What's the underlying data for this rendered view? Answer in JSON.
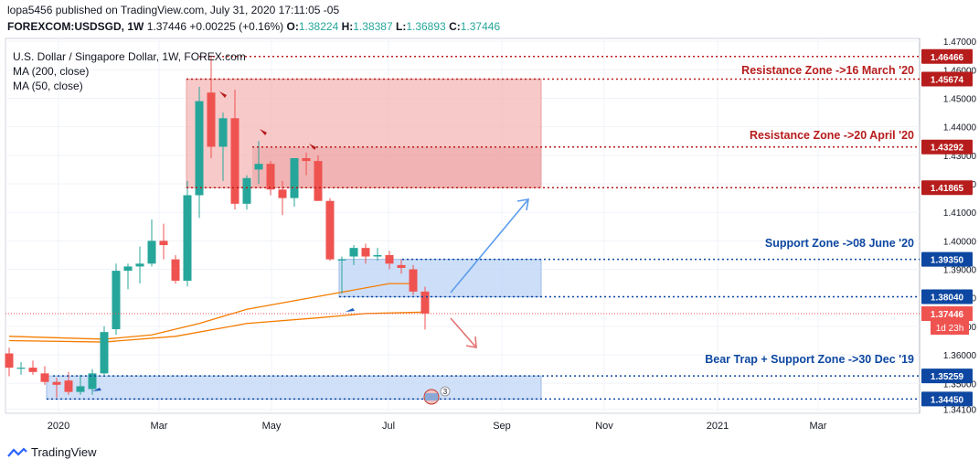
{
  "header": {
    "publisher_line": "lopa5456 published on TradingView.com, July 31, 2020 17:11:05 -05",
    "symbol": "FOREXCOM:USDSGD, 1W",
    "last": "1.37446",
    "change": "+0.00225 (+0.16%)",
    "o_label": "O:",
    "o_value": "1.38224",
    "h_label": "H:",
    "h_value": "1.38387",
    "l_label": "L:",
    "l_value": "1.36893",
    "c_label": "C:",
    "c_value": "1.37446"
  },
  "legend": {
    "title": "U.S. Dollar / Singapore Dollar, 1W, FOREX.com",
    "ma200": "MA (200, close)",
    "ma50": "MA (50, close)"
  },
  "footer": {
    "brand": "TradingView"
  },
  "colors": {
    "up": "#26a69a",
    "down": "#ef5350",
    "ma": "#f57c00",
    "resistance": "#b71c1c",
    "support": "#0d47a1",
    "resistance_fill": "#f4b7b7",
    "support_fill": "#bcd3f5",
    "arrow_up": "#5c9ded",
    "arrow_down": "#e57373"
  },
  "chart_data": {
    "type": "candlestick",
    "title": "U.S. Dollar / Singapore Dollar, 1W, FOREX.com",
    "ylim": [
      1.3395,
      1.471
    ],
    "x_ticks": [
      "2020",
      "Mar",
      "May",
      "Jul",
      "Sep",
      "Nov",
      "2021",
      "Mar"
    ],
    "y_ticks": [
      "1.47000",
      "1.46000",
      "1.45000",
      "1.44000",
      "1.43000",
      "1.42000",
      "1.41000",
      "1.40000",
      "1.39000",
      "1.38000",
      "1.37000",
      "1.36000",
      "1.35000",
      "1.34100"
    ],
    "candles": [
      {
        "o": 1.3605,
        "h": 1.3625,
        "l": 1.3525,
        "c": 1.3555
      },
      {
        "o": 1.3555,
        "h": 1.3575,
        "l": 1.353,
        "c": 1.3555
      },
      {
        "o": 1.3555,
        "h": 1.358,
        "l": 1.353,
        "c": 1.354
      },
      {
        "o": 1.3535,
        "h": 1.356,
        "l": 1.3495,
        "c": 1.3505
      },
      {
        "o": 1.3505,
        "h": 1.352,
        "l": 1.345,
        "c": 1.3495
      },
      {
        "o": 1.351,
        "h": 1.354,
        "l": 1.346,
        "c": 1.347
      },
      {
        "o": 1.347,
        "h": 1.353,
        "l": 1.346,
        "c": 1.349
      },
      {
        "o": 1.348,
        "h": 1.355,
        "l": 1.346,
        "c": 1.3535
      },
      {
        "o": 1.3535,
        "h": 1.37,
        "l": 1.353,
        "c": 1.368
      },
      {
        "o": 1.369,
        "h": 1.392,
        "l": 1.367,
        "c": 1.3895
      },
      {
        "o": 1.3895,
        "h": 1.392,
        "l": 1.383,
        "c": 1.391
      },
      {
        "o": 1.391,
        "h": 1.398,
        "l": 1.385,
        "c": 1.392
      },
      {
        "o": 1.392,
        "h": 1.4075,
        "l": 1.391,
        "c": 1.4
      },
      {
        "o": 1.4,
        "h": 1.406,
        "l": 1.3935,
        "c": 1.3985
      },
      {
        "o": 1.3935,
        "h": 1.395,
        "l": 1.385,
        "c": 1.386
      },
      {
        "o": 1.386,
        "h": 1.421,
        "l": 1.384,
        "c": 1.416
      },
      {
        "o": 1.416,
        "h": 1.454,
        "l": 1.408,
        "c": 1.449
      },
      {
        "o": 1.452,
        "h": 1.465,
        "l": 1.429,
        "c": 1.433
      },
      {
        "o": 1.433,
        "h": 1.445,
        "l": 1.421,
        "c": 1.443
      },
      {
        "o": 1.443,
        "h": 1.453,
        "l": 1.411,
        "c": 1.413
      },
      {
        "o": 1.413,
        "h": 1.423,
        "l": 1.411,
        "c": 1.422
      },
      {
        "o": 1.425,
        "h": 1.435,
        "l": 1.42,
        "c": 1.427
      },
      {
        "o": 1.427,
        "h": 1.428,
        "l": 1.416,
        "c": 1.418
      },
      {
        "o": 1.418,
        "h": 1.421,
        "l": 1.409,
        "c": 1.415
      },
      {
        "o": 1.415,
        "h": 1.429,
        "l": 1.412,
        "c": 1.429
      },
      {
        "o": 1.429,
        "h": 1.431,
        "l": 1.423,
        "c": 1.428
      },
      {
        "o": 1.428,
        "h": 1.43,
        "l": 1.414,
        "c": 1.414
      },
      {
        "o": 1.414,
        "h": 1.415,
        "l": 1.393,
        "c": 1.3935
      },
      {
        "o": 1.3935,
        "h": 1.3945,
        "l": 1.3815,
        "c": 1.3935
      },
      {
        "o": 1.3945,
        "h": 1.3985,
        "l": 1.3915,
        "c": 1.3975
      },
      {
        "o": 1.3975,
        "h": 1.399,
        "l": 1.392,
        "c": 1.3945
      },
      {
        "o": 1.3945,
        "h": 1.3975,
        "l": 1.393,
        "c": 1.395
      },
      {
        "o": 1.395,
        "h": 1.3965,
        "l": 1.39,
        "c": 1.392
      },
      {
        "o": 1.3915,
        "h": 1.3935,
        "l": 1.3885,
        "c": 1.3905
      },
      {
        "o": 1.39,
        "h": 1.3915,
        "l": 1.381,
        "c": 1.3822
      },
      {
        "o": 1.3822,
        "h": 1.3839,
        "l": 1.3689,
        "c": 1.3745
      }
    ],
    "ma50": [
      [
        0,
        1.3665
      ],
      [
        8,
        1.3655
      ],
      [
        12,
        1.367
      ],
      [
        16,
        1.371
      ],
      [
        20,
        1.376
      ],
      [
        24,
        1.379
      ],
      [
        28,
        1.382
      ],
      [
        32,
        1.385
      ],
      [
        34,
        1.385
      ]
    ],
    "ma200": [
      [
        0,
        1.365
      ],
      [
        8,
        1.3645
      ],
      [
        14,
        1.3665
      ],
      [
        20,
        1.371
      ],
      [
        26,
        1.373
      ],
      [
        30,
        1.3745
      ],
      [
        35,
        1.375
      ]
    ],
    "zones": [
      {
        "name": "resistance",
        "top": 1.4567,
        "bottom": 1.4186
      },
      {
        "name": "support",
        "top": 1.3935,
        "bottom": 1.3804
      },
      {
        "name": "bear-trap",
        "top": 1.3526,
        "bottom": 1.3445
      }
    ],
    "levels": [
      {
        "value": 1.46466,
        "label": "1.46466",
        "kind": "resistance"
      },
      {
        "value": 1.45674,
        "label": "1.45674",
        "kind": "resistance"
      },
      {
        "value": 1.43292,
        "label": "1.43292",
        "kind": "resistance"
      },
      {
        "value": 1.41865,
        "label": "1.41865",
        "kind": "resistance"
      },
      {
        "value": 1.3935,
        "label": "1.39350",
        "kind": "support"
      },
      {
        "value": 1.3804,
        "label": "1.38040",
        "kind": "support"
      },
      {
        "value": 1.35259,
        "label": "1.35259",
        "kind": "support"
      },
      {
        "value": 1.3445,
        "label": "1.34450",
        "kind": "support"
      }
    ],
    "current_price": {
      "value": 1.37446,
      "label": "1.37446",
      "countdown": "1d 23h"
    },
    "annotations": [
      {
        "text": "Resistance Zone ->16 March '20",
        "kind": "resistance"
      },
      {
        "text": "Resistance Zone ->20 April '20",
        "kind": "resistance"
      },
      {
        "text": "Support Zone ->08 June '20",
        "kind": "support"
      },
      {
        "text": "Bear Trap + Support Zone ->30 Dec '19",
        "kind": "support"
      }
    ],
    "event_badge": "3"
  }
}
